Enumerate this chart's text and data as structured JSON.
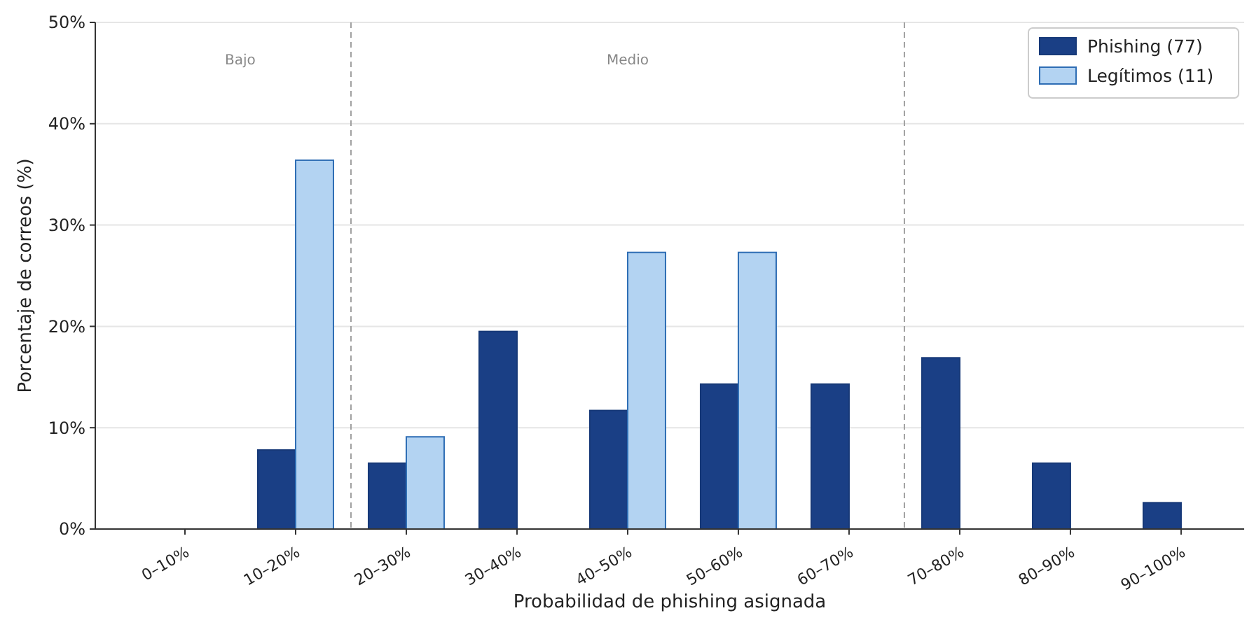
{
  "chart_data": {
    "type": "bar",
    "xlabel": "Probabilidad de phishing asignada",
    "ylabel": "Porcentaje de correos (%)",
    "categories": [
      "0–10%",
      "10–20%",
      "20–30%",
      "30–40%",
      "40–50%",
      "50–60%",
      "60–70%",
      "70–80%",
      "80–90%",
      "90–100%"
    ],
    "series": [
      {
        "name": "Phishing (77)",
        "color": "#1a3f85",
        "values": [
          0,
          7.8,
          6.5,
          19.5,
          11.7,
          14.3,
          14.3,
          16.9,
          6.5,
          2.6
        ]
      },
      {
        "name": "Legítimos (11)",
        "color": "#b3d3f2",
        "values": [
          0,
          36.4,
          9.1,
          0,
          27.3,
          27.3,
          0,
          0,
          0,
          0
        ]
      }
    ],
    "ylim": [
      0,
      50
    ],
    "yticks": [
      {
        "value": 0,
        "label": "0%"
      },
      {
        "value": 10,
        "label": "10%"
      },
      {
        "value": 20,
        "label": "20%"
      },
      {
        "value": 30,
        "label": "30%"
      },
      {
        "value": 40,
        "label": "40%"
      },
      {
        "value": 50,
        "label": "50%"
      }
    ],
    "annotations": [
      "Bajo",
      "Medio"
    ],
    "grid": "y",
    "legend": "top right"
  }
}
